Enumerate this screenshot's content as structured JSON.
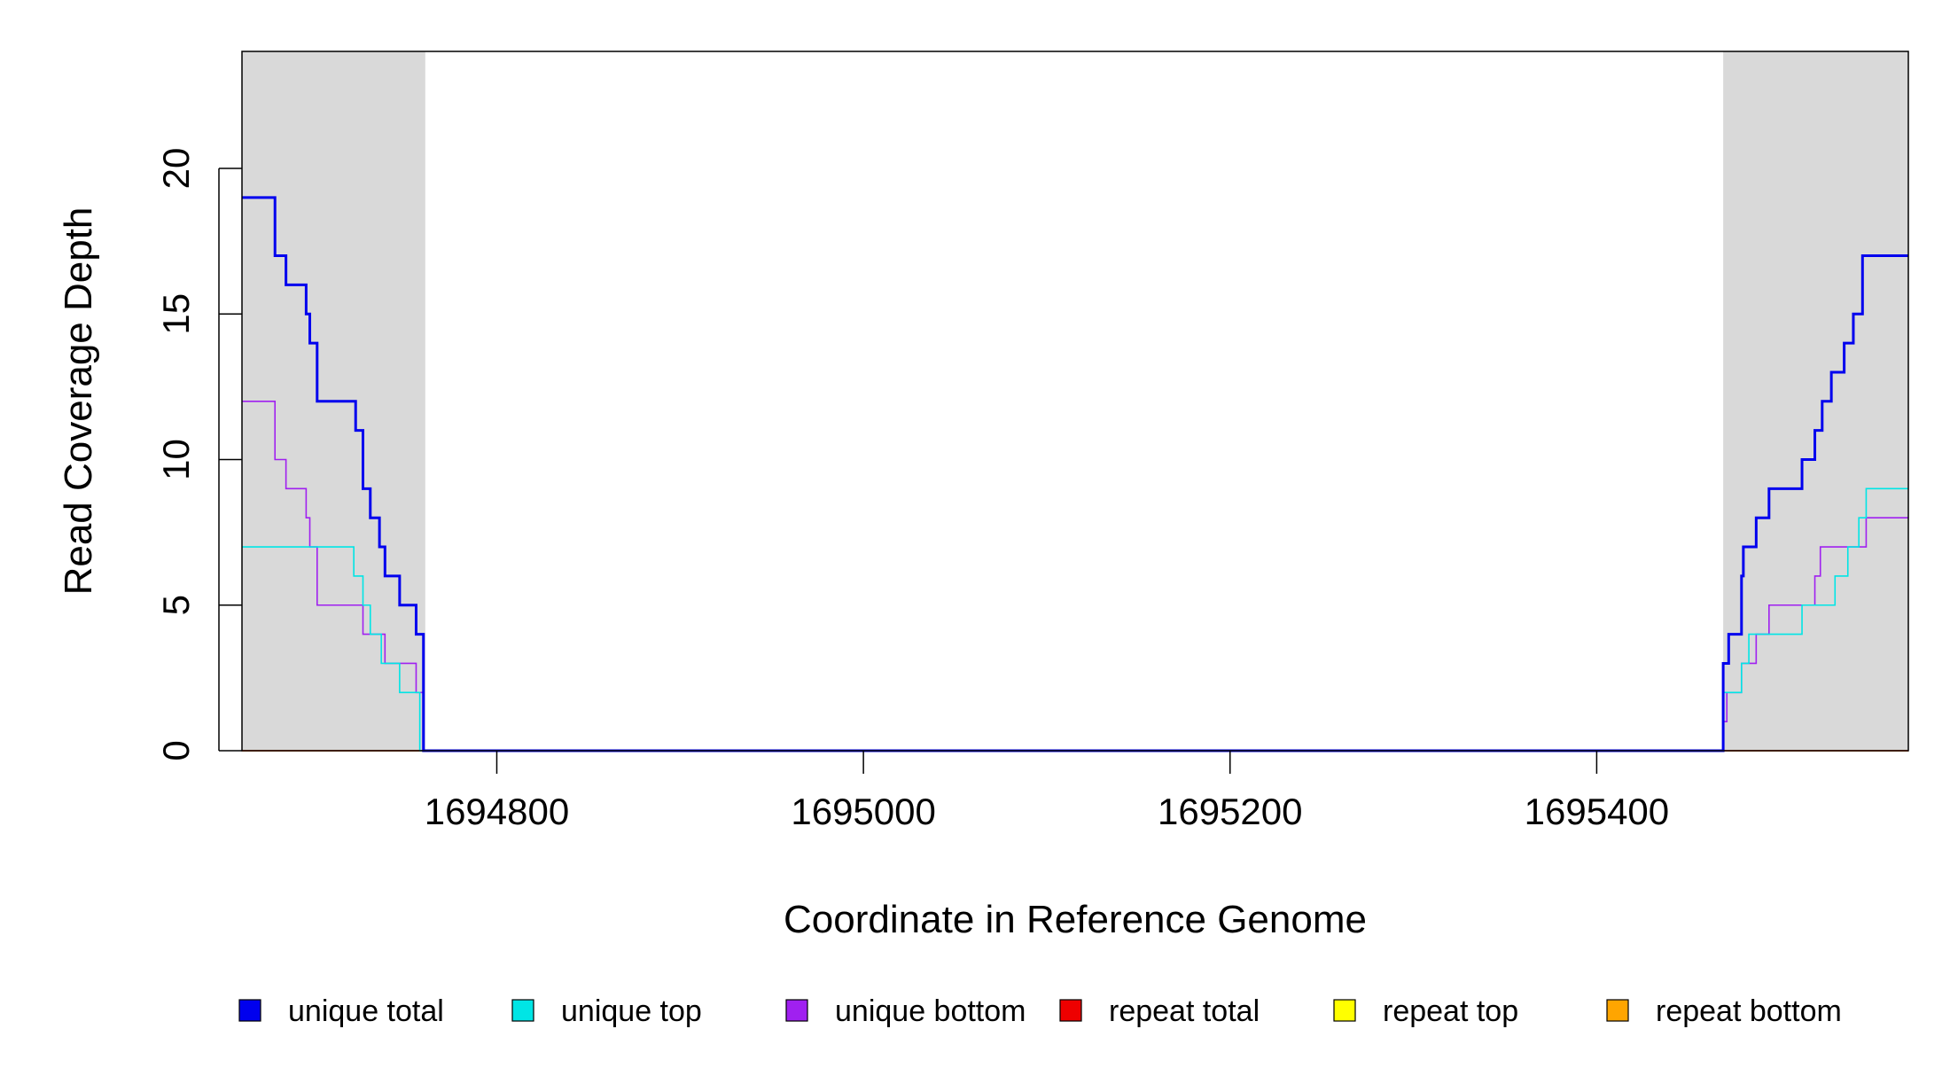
{
  "chart_data": {
    "type": "line",
    "style": "step",
    "xlabel": "Coordinate in Reference Genome",
    "ylabel": "Read Coverage Depth",
    "xlim": [
      1694661,
      1695570
    ],
    "ylim": [
      0,
      24
    ],
    "x_ticks": [
      1694800,
      1695000,
      1695200,
      1695400
    ],
    "y_ticks": [
      0,
      5,
      10,
      15,
      20
    ],
    "shaded_regions": [
      {
        "x_start": 1694661,
        "x_end": 1694761,
        "color": "#d9d9d9"
      },
      {
        "x_start": 1695469,
        "x_end": 1695570,
        "color": "#d9d9d9"
      }
    ],
    "legend_position": "bottom",
    "series": [
      {
        "name": "unique total",
        "color": "#0000ee",
        "points": [
          [
            1694661,
            19
          ],
          [
            1694679,
            17
          ],
          [
            1694685,
            16
          ],
          [
            1694696,
            15
          ],
          [
            1694698,
            14
          ],
          [
            1694702,
            12
          ],
          [
            1694723,
            11
          ],
          [
            1694727,
            9
          ],
          [
            1694731,
            8
          ],
          [
            1694736,
            7
          ],
          [
            1694739,
            6
          ],
          [
            1694747,
            5
          ],
          [
            1694756,
            4
          ],
          [
            1694760,
            0
          ],
          [
            1695469,
            3
          ],
          [
            1695472,
            4
          ],
          [
            1695479,
            6
          ],
          [
            1695480,
            7
          ],
          [
            1695487,
            8
          ],
          [
            1695494,
            9
          ],
          [
            1695512,
            10
          ],
          [
            1695519,
            11
          ],
          [
            1695523,
            12
          ],
          [
            1695528,
            13
          ],
          [
            1695535,
            14
          ],
          [
            1695540,
            15
          ],
          [
            1695545,
            17
          ],
          [
            1695570,
            17
          ]
        ]
      },
      {
        "name": "unique top",
        "color": "#00e5e5",
        "points": [
          [
            1694661,
            7
          ],
          [
            1694722,
            6
          ],
          [
            1694727,
            5
          ],
          [
            1694731,
            4
          ],
          [
            1694737,
            3
          ],
          [
            1694747,
            2
          ],
          [
            1694758,
            0
          ],
          [
            1695469,
            2
          ],
          [
            1695479,
            3
          ],
          [
            1695483,
            4
          ],
          [
            1695512,
            5
          ],
          [
            1695530,
            6
          ],
          [
            1695537,
            7
          ],
          [
            1695543,
            8
          ],
          [
            1695547,
            9
          ],
          [
            1695570,
            9
          ]
        ]
      },
      {
        "name": "unique bottom",
        "color": "#a020f0",
        "points": [
          [
            1694661,
            12
          ],
          [
            1694679,
            10
          ],
          [
            1694685,
            9
          ],
          [
            1694696,
            8
          ],
          [
            1694698,
            7
          ],
          [
            1694702,
            5
          ],
          [
            1694727,
            4
          ],
          [
            1694739,
            3
          ],
          [
            1694756,
            2
          ],
          [
            1694760,
            0
          ],
          [
            1695469,
            1
          ],
          [
            1695471,
            2
          ],
          [
            1695479,
            3
          ],
          [
            1695487,
            4
          ],
          [
            1695494,
            5
          ],
          [
            1695519,
            6
          ],
          [
            1695522,
            7
          ],
          [
            1695547,
            8
          ],
          [
            1695570,
            8
          ]
        ]
      },
      {
        "name": "repeat total",
        "color": "#ee0000",
        "points": [
          [
            1694661,
            0
          ],
          [
            1695570,
            0
          ]
        ]
      },
      {
        "name": "repeat top",
        "color": "#ffff00",
        "points": [
          [
            1694661,
            0
          ],
          [
            1695570,
            0
          ]
        ]
      },
      {
        "name": "repeat bottom",
        "color": "#ffa500",
        "points": [
          [
            1694661,
            0
          ],
          [
            1695570,
            0
          ]
        ]
      }
    ]
  }
}
